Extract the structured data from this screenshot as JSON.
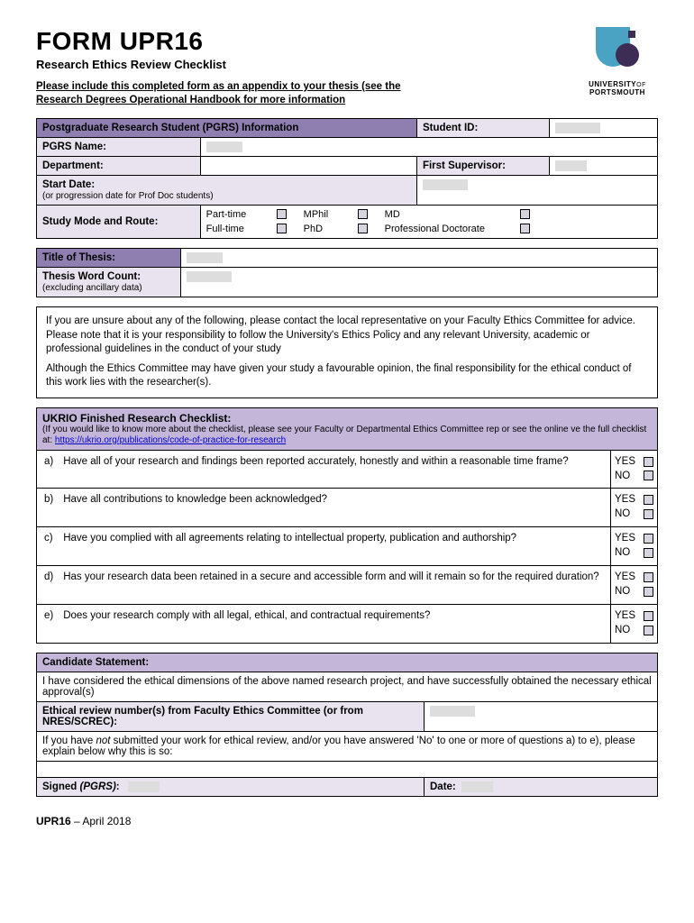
{
  "header": {
    "form_title": "FORM UPR16",
    "subtitle": "Research Ethics Review Checklist",
    "instruction": "Please include this completed form as an appendix to your thesis (see the Research Degrees Operational Handbook for more information",
    "logo_line1": "UNIVERSITY",
    "logo_of": "OF",
    "logo_line2": "PORTSMOUTH"
  },
  "section1": {
    "header": "Postgraduate Research Student (PGRS) Information",
    "student_id_label": "Student ID:",
    "pgrs_name_label": "PGRS Name:",
    "department_label": "Department:",
    "first_supervisor_label": "First Supervisor:",
    "start_date_label": "Start Date:",
    "start_date_note": "(or progression date for Prof Doc students)",
    "study_mode_label": "Study Mode and Route:",
    "routes": {
      "part_time": "Part-time",
      "full_time": "Full-time",
      "mphil": "MPhil",
      "phd": "PhD",
      "md": "MD",
      "prof_doc": "Professional Doctorate"
    }
  },
  "section2": {
    "title_label": "Title of Thesis:",
    "word_count_label": "Thesis Word Count:",
    "word_count_note": "(excluding ancillary data)"
  },
  "guidance": {
    "p1": "If you are unsure about any of the following, please contact the local representative on your Faculty Ethics Committee for advice.  Please note that it is your responsibility to follow the University's Ethics Policy and any relevant University, academic or professional guidelines in the conduct of your study",
    "p2": "Although the Ethics Committee may have given your study a favourable opinion, the final responsibility for the ethical conduct of this work lies with the researcher(s)."
  },
  "checklist": {
    "header_title": "UKRIO Finished Research Checklist:",
    "header_note": "(If you would like to know more about the checklist, please see your Faculty or Departmental Ethics Committee rep or see the online ve the full checklist at: ",
    "link_text": "https://ukrio.org/publications/code-of-practice-for-research",
    "yes": "YES",
    "no": "NO",
    "items": [
      {
        "letter": "a)",
        "text": "Have all of your research and findings been reported accurately, honestly and within a reasonable time frame?"
      },
      {
        "letter": "b)",
        "text": "Have all contributions to knowledge been acknowledged?"
      },
      {
        "letter": "c)",
        "text": "Have you complied with all agreements relating to intellectual property, publication and authorship?"
      },
      {
        "letter": "d)",
        "text": "Has your research data been retained in a secure and accessible form and will it remain so for the required duration?"
      },
      {
        "letter": "e)",
        "text": "Does your research comply with all legal, ethical, and contractual requirements?"
      }
    ]
  },
  "candidate": {
    "header": "Candidate Statement:",
    "body": "I have considered the ethical dimensions of the above named research project, and have successfully obtained the necessary ethical approval(s)",
    "ethical_review_label": "Ethical review number(s) from Faculty Ethics Committee (or from NRES/SCREC):",
    "not_submitted_prefix": "If you have ",
    "not_submitted_italic": "not",
    "not_submitted_suffix": " submitted your work for ethical review, and/or you have answered 'No' to one or more of questions a) to e), please explain below why this is so:",
    "signed_label": "Signed ",
    "signed_italic": "(PGRS)",
    "signed_colon": ":",
    "date_label": "Date:"
  },
  "footer": {
    "code": "UPR16",
    "suffix": " – April 2018"
  }
}
